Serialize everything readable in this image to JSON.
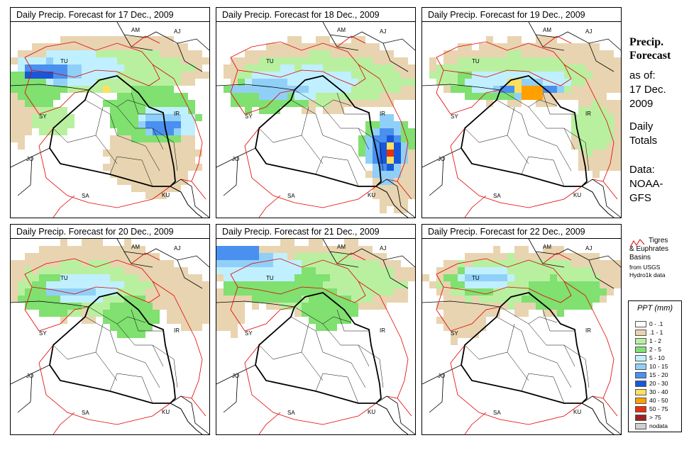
{
  "panels": [
    {
      "title": "Daily Precip. Forecast for  17 Dec., 2009"
    },
    {
      "title": "Daily Precip. Forecast for  18 Dec., 2009"
    },
    {
      "title": "Daily Precip. Forecast for  19 Dec., 2009"
    },
    {
      "title": "Daily Precip. Forecast for  20 Dec., 2009"
    },
    {
      "title": "Daily Precip. Forecast for  21 Dec., 2009"
    },
    {
      "title": "Daily Precip. Forecast for  22 Dec., 2009"
    }
  ],
  "country_labels": {
    "am": "AM",
    "aj": "AJ",
    "tu": "TU",
    "sy": "SY",
    "ir": "IR",
    "jo": "JO",
    "sa": "SA",
    "ku": "KU"
  },
  "sidebar": {
    "title_line1": "Precip.",
    "title_line2": "Forecast",
    "asof_line1": "as of:",
    "asof_line2": "17 Dec.",
    "asof_line3": "2009",
    "daily_line1": "Daily",
    "daily_line2": "Totals",
    "data_line1": "Data:",
    "data_line2": "NOAA-",
    "data_line3": "GFS"
  },
  "basin_legend": {
    "line1": "Tigres",
    "line2": "& Euphrates",
    "line3": "Basins",
    "line4": "from USGS",
    "line5": "Hydro1k data"
  },
  "legend": {
    "title": "PPT (mm)",
    "items": [
      {
        "label": "0 - .1",
        "color": "#ffffff"
      },
      {
        "label": ".1 - 1",
        "color": "#e8d4b0"
      },
      {
        "label": "1 - 2",
        "color": "#b8f0a0"
      },
      {
        "label": "2 - 5",
        "color": "#80e070"
      },
      {
        "label": "5 - 10",
        "color": "#c0f0ff"
      },
      {
        "label": "10 - 15",
        "color": "#90d0f8"
      },
      {
        "label": "15 - 20",
        "color": "#4a90f0"
      },
      {
        "label": "20 - 30",
        "color": "#1858d8"
      },
      {
        "label": "30 - 40",
        "color": "#ffe060"
      },
      {
        "label": "40 - 50",
        "color": "#ffa000"
      },
      {
        "label": "50 - 75",
        "color": "#e83010"
      },
      {
        "label": "> 75",
        "color": "#a02020"
      },
      {
        "label": "nodata",
        "color": "#d0d0d0"
      }
    ]
  }
}
